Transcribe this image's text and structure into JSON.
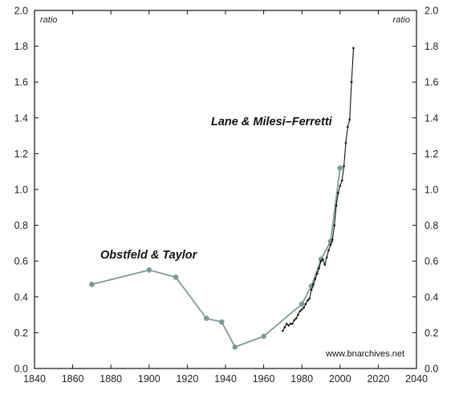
{
  "chart_data": {
    "type": "line",
    "title": "",
    "xlabel": "",
    "ylabel": "ratio",
    "ylabel_right": "ratio",
    "xlim": [
      1840,
      2040
    ],
    "ylim": [
      0.0,
      2.0
    ],
    "x_ticks": [
      1840,
      1860,
      1880,
      1900,
      1920,
      1940,
      1960,
      1980,
      2000,
      2020,
      2040
    ],
    "y_ticks": [
      0.0,
      0.2,
      0.4,
      0.6,
      0.8,
      1.0,
      1.2,
      1.4,
      1.6,
      1.8,
      2.0
    ],
    "y_tick_labels": [
      "0.0",
      "0.2",
      "0.4",
      "0.6",
      "0.8",
      "1.0",
      "1.2",
      "1.4",
      "1.6",
      "1.8",
      "2.0"
    ],
    "grid": false,
    "source_note": "www.bnarchives.net",
    "series": [
      {
        "name": "Obstfeld & Taylor",
        "color": "#7f9a9c",
        "marker": "circle",
        "x": [
          1870,
          1900,
          1914,
          1930,
          1938,
          1945,
          1960,
          1980,
          1985,
          1990,
          1995,
          2000
        ],
        "y": [
          0.47,
          0.55,
          0.51,
          0.28,
          0.26,
          0.12,
          0.18,
          0.36,
          0.46,
          0.61,
          0.71,
          1.12
        ]
      },
      {
        "name": "Lane & Milesi–Ferretti",
        "color": "#111111",
        "marker": "dot",
        "x": [
          1970,
          1971,
          1972,
          1973,
          1974,
          1975,
          1976,
          1977,
          1978,
          1979,
          1980,
          1981,
          1982,
          1983,
          1984,
          1985,
          1986,
          1987,
          1988,
          1989,
          1990,
          1991,
          1992,
          1993,
          1994,
          1995,
          1996,
          1997,
          1998,
          1999,
          2000,
          2001,
          2002,
          2003,
          2004,
          2005,
          2006,
          2007
        ],
        "y": [
          0.21,
          0.23,
          0.25,
          0.24,
          0.25,
          0.25,
          0.27,
          0.28,
          0.3,
          0.32,
          0.33,
          0.34,
          0.36,
          0.38,
          0.39,
          0.44,
          0.47,
          0.5,
          0.53,
          0.56,
          0.6,
          0.61,
          0.58,
          0.62,
          0.66,
          0.69,
          0.72,
          0.8,
          0.91,
          0.98,
          1.02,
          1.05,
          1.13,
          1.26,
          1.35,
          1.39,
          1.6,
          1.79
        ]
      }
    ],
    "annotations": [
      {
        "text": "Obstfeld & Taylor",
        "series": 0
      },
      {
        "text": "Lane & Milesi–Ferretti",
        "series": 1
      }
    ]
  }
}
